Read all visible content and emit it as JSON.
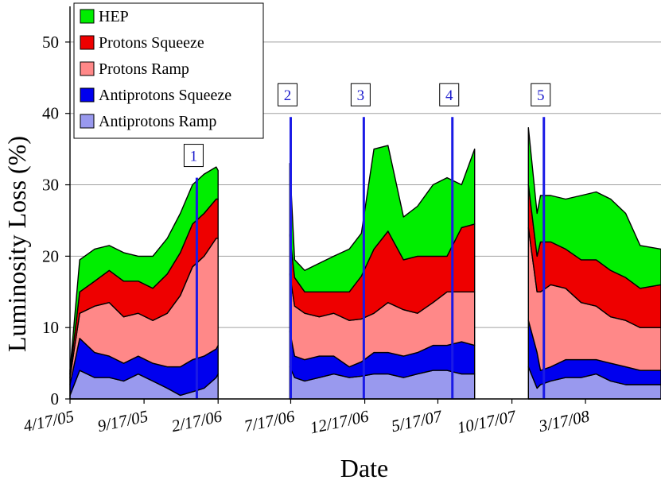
{
  "chart_data": {
    "type": "area",
    "stacked": true,
    "title": "",
    "xlabel": "Date",
    "ylabel": "Luminosity Loss (%)",
    "ylim": [
      0,
      55
    ],
    "yticks": [
      0,
      10,
      20,
      30,
      40,
      50
    ],
    "xlim": [
      "2005-04-17",
      "2008-08-20"
    ],
    "xticks": [
      "4/17/05",
      "9/17/05",
      "2/17/06",
      "7/17/06",
      "12/17/06",
      "5/17/07",
      "10/17/07",
      "3/17/08"
    ],
    "xtick_dates": [
      "2005-04-17",
      "2005-09-17",
      "2006-02-17",
      "2006-07-17",
      "2006-12-17",
      "2007-05-17",
      "2007-10-17",
      "2008-03-17"
    ],
    "grid": "horizontal",
    "legend_position": "top-left",
    "x": [
      "2005-04-17",
      "2005-05-07",
      "2005-06-07",
      "2005-07-07",
      "2005-08-06",
      "2005-09-05",
      "2005-10-05",
      "2005-11-04",
      "2005-12-01",
      "2005-12-26",
      "2006-01-19",
      "2006-02-13",
      "2006-02-17",
      "2006-07-15",
      "2006-07-25",
      "2006-08-15",
      "2006-09-14",
      "2006-10-14",
      "2006-11-15",
      "2006-12-10",
      "2007-01-05",
      "2007-02-03",
      "2007-03-07",
      "2007-04-05",
      "2007-05-07",
      "2007-06-05",
      "2007-07-05",
      "2007-08-01",
      "2007-11-20",
      "2007-12-08",
      "2007-12-15",
      "2008-01-05",
      "2008-02-05",
      "2008-03-08",
      "2008-04-08",
      "2008-05-08",
      "2008-06-08",
      "2008-07-08",
      "2008-08-20"
    ],
    "segments": [
      [
        0,
        12
      ],
      [
        13,
        27
      ],
      [
        28,
        38
      ]
    ],
    "series": [
      {
        "name": "Antiprotons Ramp",
        "color": "#9999ee",
        "values": [
          0.5,
          4.0,
          3.0,
          3.0,
          2.5,
          3.5,
          2.5,
          1.5,
          0.5,
          1.0,
          1.5,
          3.0,
          3.5,
          4.5,
          3.0,
          2.5,
          3.0,
          3.5,
          3.0,
          3.2,
          3.5,
          3.5,
          3.0,
          3.5,
          4.0,
          4.0,
          3.5,
          3.5,
          4.5,
          1.5,
          2.0,
          2.5,
          3.0,
          3.0,
          3.5,
          2.5,
          2.0,
          2.0,
          2.0
        ]
      },
      {
        "name": "Antiprotons Squeeze",
        "color": "#0000ee",
        "values": [
          1.5,
          4.5,
          3.5,
          3.0,
          2.5,
          2.5,
          2.5,
          3.0,
          4.0,
          4.5,
          4.5,
          4.0,
          4.0,
          5.0,
          3.0,
          3.0,
          3.0,
          2.5,
          1.5,
          2.0,
          3.0,
          3.0,
          3.0,
          3.0,
          3.5,
          3.5,
          4.5,
          4.0,
          6.5,
          5.0,
          2.0,
          2.0,
          2.5,
          2.5,
          2.0,
          2.5,
          2.5,
          2.0,
          2.0
        ]
      },
      {
        "name": "Protons Ramp",
        "color": "#ff8888",
        "values": [
          1.0,
          3.5,
          6.5,
          7.5,
          6.5,
          6.0,
          6.0,
          7.5,
          10.0,
          13.0,
          14.0,
          15.5,
          15.0,
          8.0,
          7.0,
          6.5,
          5.5,
          6.0,
          6.5,
          6.0,
          5.5,
          7.0,
          6.5,
          5.5,
          6.0,
          7.5,
          7.0,
          7.5,
          13.0,
          8.5,
          11.0,
          11.5,
          10.0,
          8.0,
          7.5,
          6.5,
          6.5,
          6.0,
          6.0
        ]
      },
      {
        "name": "Protons Squeeze",
        "color": "#ee0000",
        "values": [
          0.5,
          3.0,
          3.5,
          4.5,
          5.0,
          4.5,
          4.5,
          5.5,
          6.0,
          6.0,
          6.0,
          5.5,
          5.5,
          5.5,
          4.0,
          3.0,
          3.5,
          3.0,
          4.0,
          6.0,
          9.0,
          10.0,
          7.0,
          8.0,
          6.5,
          5.0,
          9.0,
          9.5,
          6.0,
          5.0,
          7.0,
          6.0,
          5.5,
          6.0,
          6.5,
          6.5,
          6.0,
          5.5,
          6.0
        ]
      },
      {
        "name": "HEP",
        "color": "#00ee00",
        "values": [
          0.5,
          4.5,
          4.5,
          3.5,
          4.0,
          3.5,
          4.5,
          5.0,
          5.5,
          5.5,
          5.5,
          4.5,
          4.0,
          10.0,
          2.5,
          3.0,
          4.0,
          5.0,
          6.0,
          6.0,
          14.0,
          12.0,
          6.0,
          7.0,
          10.0,
          11.0,
          6.0,
          10.5,
          8.0,
          6.0,
          6.5,
          6.5,
          7.0,
          9.0,
          9.5,
          10.0,
          9.0,
          6.0,
          5.0
        ]
      }
    ],
    "markers": [
      {
        "label": "1",
        "x": "2006-01-04",
        "top": 31
      },
      {
        "label": "2",
        "x": "2006-07-17",
        "top": 39.5
      },
      {
        "label": "3",
        "x": "2006-12-15",
        "top": 39.5
      },
      {
        "label": "4",
        "x": "2007-06-16",
        "top": 39.5
      },
      {
        "label": "5",
        "x": "2007-12-22",
        "top": 39.5
      }
    ]
  }
}
